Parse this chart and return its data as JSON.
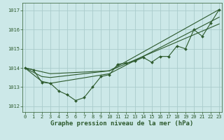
{
  "background_color": "#cce8e8",
  "grid_color": "#aacccc",
  "line_color": "#2d5a2d",
  "marker_color": "#2d5a2d",
  "xlabel": "Graphe pression niveau de la mer (hPa)",
  "xlabel_fontsize": 6.5,
  "xlabel_color": "#2d5a2d",
  "xlabel_bold": true,
  "yticks": [
    1012,
    1013,
    1014,
    1015,
    1016,
    1017
  ],
  "xtick_labels": [
    "0",
    "1",
    "2",
    "3",
    "4",
    "5",
    "6",
    "7",
    "8",
    "9",
    "10",
    "11",
    "12",
    "13",
    "14",
    "15",
    "16",
    "17",
    "18",
    "19",
    "20",
    "21",
    "22",
    "23"
  ],
  "xticks": [
    0,
    1,
    2,
    3,
    4,
    5,
    6,
    7,
    8,
    9,
    10,
    11,
    12,
    13,
    14,
    15,
    16,
    17,
    18,
    19,
    20,
    21,
    22,
    23
  ],
  "xlim": [
    -0.3,
    23.3
  ],
  "ylim": [
    1011.7,
    1017.4
  ],
  "series0": {
    "x": [
      0,
      1,
      2,
      3,
      4,
      5,
      6,
      7,
      8,
      9,
      10,
      11,
      12,
      13,
      14,
      15,
      16,
      17,
      18,
      19,
      20,
      21,
      22,
      23
    ],
    "y": [
      1014.0,
      1013.9,
      1013.25,
      1013.2,
      1012.8,
      1012.6,
      1012.3,
      1012.45,
      1013.0,
      1013.55,
      1013.65,
      1014.2,
      1014.25,
      1014.35,
      1014.55,
      1014.3,
      1014.6,
      1014.6,
      1015.15,
      1015.0,
      1016.0,
      1015.65,
      1016.35,
      1017.05
    ]
  },
  "series_smooth": [
    {
      "x": [
        0,
        2,
        3,
        10,
        23
      ],
      "y": [
        1014.0,
        1013.8,
        1013.7,
        1013.85,
        1016.3
      ]
    },
    {
      "x": [
        0,
        2,
        3,
        10,
        23
      ],
      "y": [
        1014.0,
        1013.55,
        1013.5,
        1013.85,
        1017.05
      ]
    },
    {
      "x": [
        0,
        2,
        3,
        10,
        23
      ],
      "y": [
        1014.0,
        1013.3,
        1013.2,
        1013.7,
        1016.65
      ]
    }
  ],
  "tick_fontsize": 5.0,
  "tick_color": "#2d5a2d",
  "linewidth": 0.8,
  "markersize": 2.0
}
